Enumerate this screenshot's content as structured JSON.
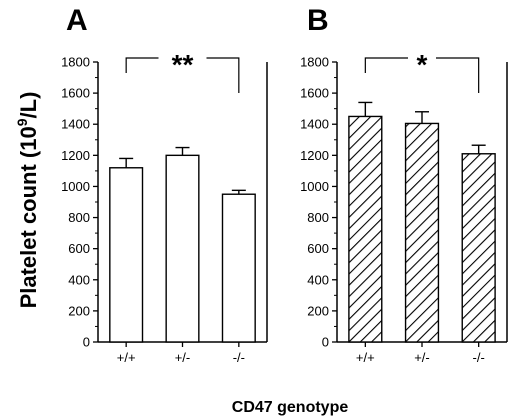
{
  "figure": {
    "ylabel_main": "Platelet count (10",
    "ylabel_sup": "9",
    "ylabel_end": "/L)",
    "xlabel": "CD47 genotype"
  },
  "chart_data": [
    {
      "type": "bar",
      "panel": "A",
      "categories": [
        "+/+",
        "+/-",
        "-/-"
      ],
      "values": [
        1120,
        1200,
        950
      ],
      "errors": [
        60,
        50,
        25
      ],
      "fill": "open",
      "ylim": [
        0,
        1800
      ],
      "yticks": [
        "0",
        "200",
        "400",
        "600",
        "800",
        "1000",
        "1200",
        "1400",
        "1600",
        "1800"
      ],
      "significance": {
        "label": "**",
        "from": 0,
        "to": 2
      }
    },
    {
      "type": "bar",
      "panel": "B",
      "categories": [
        "+/+",
        "+/-",
        "-/-"
      ],
      "values": [
        1450,
        1405,
        1210
      ],
      "errors": [
        90,
        75,
        55
      ],
      "fill": "hatched",
      "ylim": [
        0,
        1800
      ],
      "yticks": [
        "0",
        "200",
        "400",
        "600",
        "800",
        "1000",
        "1200",
        "1400",
        "1600",
        "1800"
      ],
      "significance": {
        "label": "*",
        "from": 0,
        "to": 2
      }
    }
  ]
}
